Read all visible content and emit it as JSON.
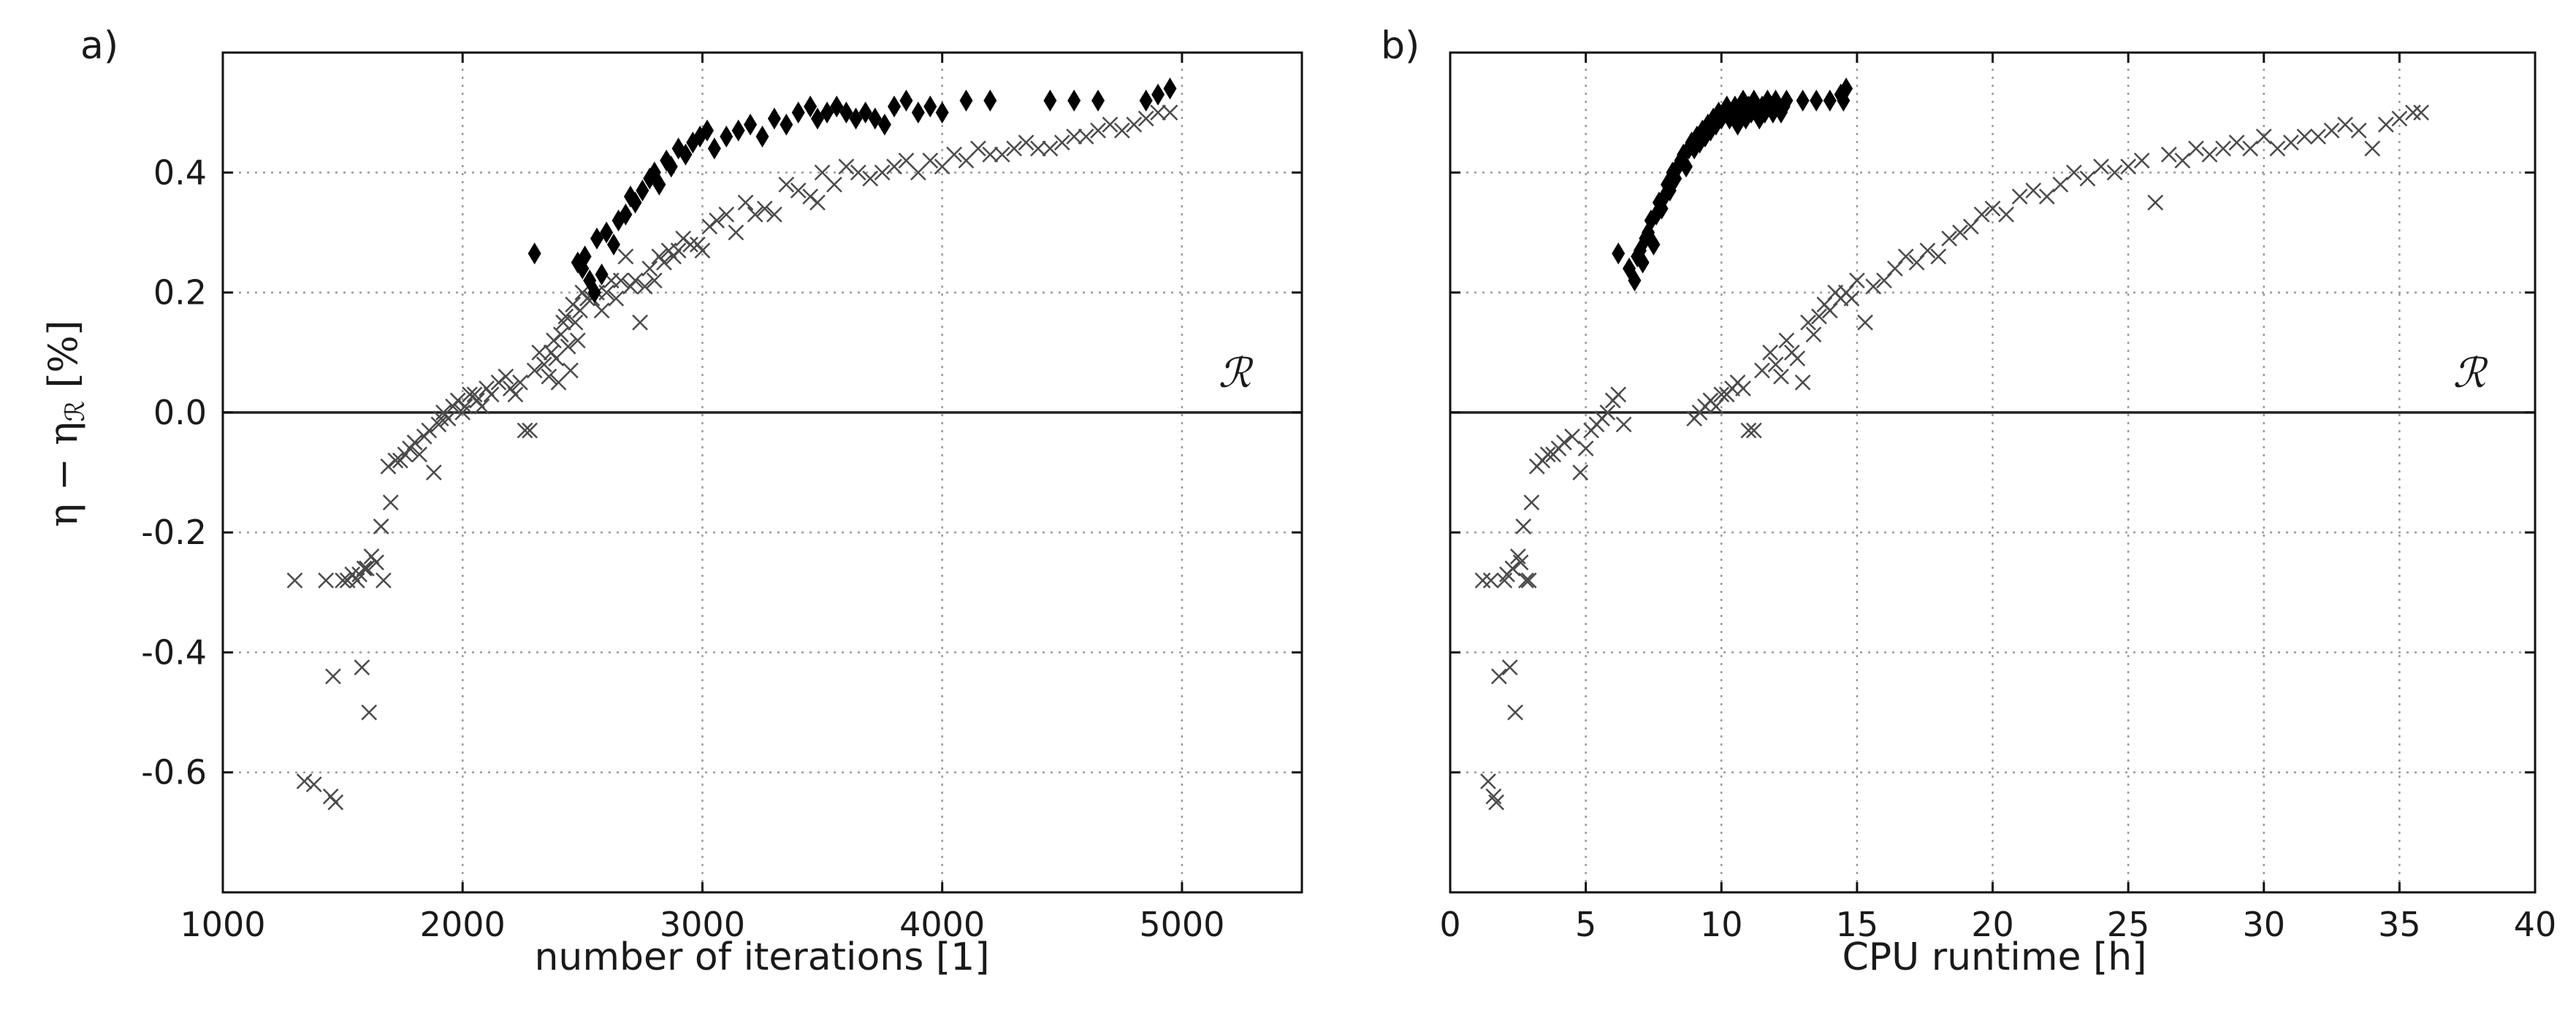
{
  "chart_data": [
    {
      "type": "scatter",
      "panel_label": "a)",
      "xlabel": "number of iterations [1]",
      "ylabel": "η − η_R [%]",
      "xlim": [
        1000,
        5500
      ],
      "ylim": [
        -0.8,
        0.6
      ],
      "xticks": [
        1000,
        2000,
        3000,
        4000,
        5000
      ],
      "xtick_labels": [
        "1000",
        "2000",
        "3000",
        "4000",
        "5000"
      ],
      "yticks": [
        -0.6,
        -0.4,
        -0.2,
        0.0,
        0.2,
        0.4
      ],
      "ytick_labels": [
        "-0.6",
        "-0.4",
        "-0.2",
        "0.0",
        "0.2",
        "0.4"
      ],
      "grid": true,
      "reference_line": {
        "y": 0.0,
        "label": "ℛ"
      },
      "series": [
        {
          "name": "cross",
          "marker": "x",
          "x": [
            1300,
            1340,
            1380,
            1430,
            1450,
            1460,
            1470,
            1500,
            1520,
            1540,
            1560,
            1570,
            1580,
            1590,
            1600,
            1610,
            1620,
            1640,
            1660,
            1670,
            1690,
            1700,
            1720,
            1740,
            1760,
            1780,
            1800,
            1820,
            1840,
            1860,
            1880,
            1900,
            1910,
            1920,
            1940,
            1960,
            1980,
            2000,
            2010,
            2030,
            2050,
            2060,
            2080,
            2100,
            2120,
            2150,
            2180,
            2200,
            2220,
            2240,
            2260,
            2280,
            2300,
            2320,
            2340,
            2360,
            2370,
            2380,
            2390,
            2400,
            2410,
            2420,
            2430,
            2440,
            2450,
            2460,
            2470,
            2480,
            2490,
            2500,
            2520,
            2540,
            2560,
            2580,
            2600,
            2620,
            2640,
            2660,
            2680,
            2700,
            2720,
            2740,
            2760,
            2780,
            2800,
            2820,
            2840,
            2860,
            2880,
            2900,
            2920,
            2950,
            2980,
            3000,
            3030,
            3060,
            3100,
            3140,
            3180,
            3220,
            3260,
            3300,
            3350,
            3400,
            3450,
            3480,
            3500,
            3550,
            3600,
            3650,
            3700,
            3750,
            3800,
            3850,
            3900,
            3950,
            4000,
            4050,
            4100,
            4150,
            4200,
            4250,
            4300,
            4350,
            4400,
            4450,
            4500,
            4550,
            4600,
            4650,
            4700,
            4750,
            4800,
            4850,
            4900,
            4950
          ],
          "y": [
            -0.28,
            -0.615,
            -0.62,
            -0.28,
            -0.64,
            -0.44,
            -0.65,
            -0.28,
            -0.28,
            -0.27,
            -0.28,
            -0.27,
            -0.425,
            -0.26,
            -0.26,
            -0.5,
            -0.24,
            -0.25,
            -0.19,
            -0.28,
            -0.09,
            -0.15,
            -0.08,
            -0.08,
            -0.07,
            -0.06,
            -0.05,
            -0.07,
            -0.04,
            -0.03,
            -0.1,
            -0.02,
            -0.01,
            0.0,
            -0.01,
            0.01,
            0.02,
            0.0,
            0.01,
            0.03,
            0.03,
            0.02,
            0.01,
            0.04,
            0.03,
            0.05,
            0.06,
            0.04,
            0.03,
            0.05,
            -0.03,
            -0.03,
            0.07,
            0.1,
            0.08,
            0.06,
            0.1,
            0.12,
            0.09,
            0.05,
            0.13,
            0.15,
            0.16,
            0.11,
            0.07,
            0.18,
            0.15,
            0.12,
            0.17,
            0.2,
            0.19,
            0.19,
            0.2,
            0.17,
            0.2,
            0.22,
            0.19,
            0.22,
            0.26,
            0.21,
            0.22,
            0.15,
            0.21,
            0.24,
            0.22,
            0.26,
            0.25,
            0.27,
            0.26,
            0.27,
            0.29,
            0.28,
            0.28,
            0.27,
            0.31,
            0.32,
            0.33,
            0.3,
            0.35,
            0.33,
            0.34,
            0.33,
            0.38,
            0.37,
            0.36,
            0.35,
            0.4,
            0.38,
            0.41,
            0.4,
            0.39,
            0.4,
            0.41,
            0.42,
            0.4,
            0.42,
            0.41,
            0.43,
            0.42,
            0.44,
            0.43,
            0.43,
            0.44,
            0.45,
            0.44,
            0.44,
            0.45,
            0.46,
            0.46,
            0.47,
            0.48,
            0.47,
            0.48,
            0.49,
            0.5,
            0.5
          ]
        },
        {
          "name": "diamond",
          "marker": "d",
          "x": [
            2300,
            2480,
            2500,
            2510,
            2530,
            2550,
            2560,
            2580,
            2600,
            2630,
            2650,
            2680,
            2700,
            2720,
            2750,
            2780,
            2800,
            2820,
            2850,
            2870,
            2900,
            2930,
            2960,
            2990,
            3020,
            3050,
            3100,
            3150,
            3200,
            3250,
            3300,
            3350,
            3400,
            3450,
            3480,
            3520,
            3560,
            3600,
            3640,
            3680,
            3720,
            3760,
            3800,
            3850,
            3900,
            3950,
            4000,
            4100,
            4200,
            4450,
            4550,
            4650,
            4850,
            4900,
            4950
          ],
          "y": [
            0.265,
            0.25,
            0.24,
            0.26,
            0.22,
            0.2,
            0.29,
            0.23,
            0.3,
            0.28,
            0.32,
            0.33,
            0.36,
            0.35,
            0.37,
            0.39,
            0.4,
            0.38,
            0.42,
            0.41,
            0.44,
            0.43,
            0.45,
            0.46,
            0.47,
            0.44,
            0.46,
            0.47,
            0.48,
            0.46,
            0.49,
            0.48,
            0.5,
            0.51,
            0.49,
            0.5,
            0.51,
            0.5,
            0.49,
            0.5,
            0.49,
            0.48,
            0.51,
            0.52,
            0.5,
            0.51,
            0.5,
            0.52,
            0.52,
            0.52,
            0.52,
            0.52,
            0.52,
            0.53,
            0.54
          ]
        }
      ]
    },
    {
      "type": "scatter",
      "panel_label": "b)",
      "xlabel": "CPU runtime [h]",
      "ylabel": "",
      "xlim": [
        0,
        40
      ],
      "ylim": [
        -0.8,
        0.6
      ],
      "xticks": [
        0,
        5,
        10,
        15,
        20,
        25,
        30,
        35,
        40
      ],
      "xtick_labels": [
        "0",
        "5",
        "10",
        "15",
        "20",
        "25",
        "30",
        "35",
        "40"
      ],
      "yticks": [
        -0.6,
        -0.4,
        -0.2,
        0.0,
        0.2,
        0.4
      ],
      "ytick_labels": [],
      "grid": true,
      "reference_line": {
        "y": 0.0,
        "label": "ℛ"
      },
      "series": [
        {
          "name": "cross",
          "marker": "x",
          "x": [
            1.2,
            1.4,
            1.5,
            1.6,
            1.7,
            1.8,
            2.0,
            2.1,
            2.2,
            2.3,
            2.4,
            2.5,
            2.6,
            2.7,
            2.8,
            2.9,
            3.0,
            3.2,
            3.4,
            3.6,
            3.8,
            4.0,
            4.2,
            4.5,
            4.8,
            5.0,
            5.2,
            5.4,
            5.6,
            5.8,
            6.0,
            6.2,
            6.4,
            9.0,
            9.2,
            9.4,
            9.6,
            9.8,
            10.0,
            10.2,
            10.4,
            10.6,
            10.8,
            11.0,
            11.2,
            11.5,
            11.8,
            12.0,
            12.2,
            12.4,
            12.6,
            12.8,
            13.0,
            13.2,
            13.4,
            13.6,
            13.8,
            14.0,
            14.2,
            14.4,
            14.6,
            14.8,
            15.0,
            15.3,
            15.6,
            16.0,
            16.4,
            16.8,
            17.2,
            17.6,
            18.0,
            18.4,
            18.8,
            19.2,
            19.6,
            20.0,
            20.5,
            21.0,
            21.5,
            22.0,
            22.5,
            23.0,
            23.5,
            24.0,
            24.5,
            25.0,
            25.5,
            26.0,
            26.5,
            27.0,
            27.5,
            28.0,
            28.5,
            29.0,
            29.5,
            30.0,
            30.5,
            31.0,
            31.5,
            32.0,
            32.5,
            33.0,
            33.5,
            34.0,
            34.5,
            35.0,
            35.5,
            35.8
          ],
          "y": [
            -0.28,
            -0.615,
            -0.28,
            -0.64,
            -0.65,
            -0.44,
            -0.28,
            -0.27,
            -0.425,
            -0.26,
            -0.5,
            -0.24,
            -0.25,
            -0.19,
            -0.28,
            -0.28,
            -0.15,
            -0.09,
            -0.08,
            -0.07,
            -0.07,
            -0.06,
            -0.05,
            -0.04,
            -0.1,
            -0.06,
            -0.03,
            -0.02,
            -0.01,
            0.0,
            0.02,
            0.03,
            -0.02,
            -0.01,
            0.0,
            0.01,
            0.02,
            0.01,
            0.03,
            0.03,
            0.04,
            0.05,
            0.04,
            -0.03,
            -0.03,
            0.07,
            0.1,
            0.08,
            0.06,
            0.12,
            0.1,
            0.09,
            0.05,
            0.15,
            0.13,
            0.16,
            0.18,
            0.17,
            0.2,
            0.19,
            0.2,
            0.19,
            0.22,
            0.15,
            0.21,
            0.22,
            0.24,
            0.26,
            0.25,
            0.27,
            0.26,
            0.29,
            0.3,
            0.31,
            0.33,
            0.34,
            0.33,
            0.36,
            0.37,
            0.36,
            0.38,
            0.4,
            0.39,
            0.41,
            0.4,
            0.41,
            0.42,
            0.35,
            0.43,
            0.42,
            0.44,
            0.43,
            0.44,
            0.45,
            0.44,
            0.46,
            0.44,
            0.45,
            0.46,
            0.46,
            0.47,
            0.48,
            0.47,
            0.44,
            0.48,
            0.49,
            0.5,
            0.5
          ]
        },
        {
          "name": "diamond",
          "marker": "d",
          "x": [
            6.2,
            6.6,
            6.8,
            6.9,
            7.0,
            7.1,
            7.2,
            7.3,
            7.4,
            7.5,
            7.6,
            7.7,
            7.8,
            7.9,
            8.0,
            8.1,
            8.2,
            8.3,
            8.4,
            8.5,
            8.6,
            8.7,
            8.8,
            8.9,
            9.0,
            9.1,
            9.2,
            9.3,
            9.4,
            9.5,
            9.6,
            9.7,
            9.8,
            9.9,
            10.0,
            10.1,
            10.2,
            10.3,
            10.4,
            10.5,
            10.6,
            10.7,
            10.8,
            10.9,
            11.0,
            11.1,
            11.2,
            11.3,
            11.4,
            11.5,
            11.6,
            11.7,
            11.8,
            11.9,
            12.0,
            12.1,
            12.2,
            12.3,
            12.4,
            13.0,
            13.5,
            14.0,
            14.4,
            14.5,
            14.6
          ],
          "y": [
            0.265,
            0.24,
            0.22,
            0.26,
            0.27,
            0.25,
            0.29,
            0.3,
            0.32,
            0.28,
            0.33,
            0.35,
            0.34,
            0.36,
            0.38,
            0.37,
            0.4,
            0.39,
            0.41,
            0.42,
            0.43,
            0.41,
            0.44,
            0.45,
            0.44,
            0.46,
            0.45,
            0.47,
            0.46,
            0.48,
            0.47,
            0.49,
            0.48,
            0.5,
            0.49,
            0.5,
            0.51,
            0.49,
            0.5,
            0.51,
            0.48,
            0.5,
            0.52,
            0.49,
            0.51,
            0.5,
            0.52,
            0.5,
            0.49,
            0.51,
            0.5,
            0.52,
            0.51,
            0.5,
            0.52,
            0.51,
            0.5,
            0.51,
            0.52,
            0.52,
            0.52,
            0.52,
            0.53,
            0.52,
            0.54
          ]
        }
      ]
    }
  ]
}
